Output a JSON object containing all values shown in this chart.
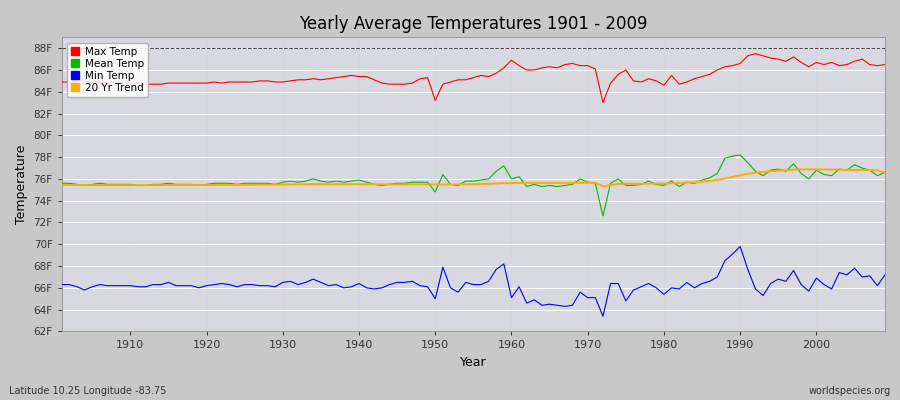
{
  "title": "Yearly Average Temperatures 1901 - 2009",
  "xlabel": "Year",
  "ylabel": "Temperature",
  "lat_lon_label": "Latitude 10.25 Longitude -83.75",
  "source_label": "worldspecies.org",
  "ylim": [
    62,
    89
  ],
  "yticks": [
    62,
    64,
    66,
    68,
    70,
    72,
    74,
    76,
    78,
    80,
    82,
    84,
    86,
    88
  ],
  "ytick_labels": [
    "62F",
    "64F",
    "66F",
    "68F",
    "70F",
    "72F",
    "74F",
    "76F",
    "78F",
    "80F",
    "82F",
    "84F",
    "86F",
    "88F"
  ],
  "xlim": [
    1901,
    2009
  ],
  "fig_bg": "#c8c8c8",
  "plot_bg": "#d8d8e0",
  "dashed_line_y": 88,
  "years": [
    1901,
    1902,
    1903,
    1904,
    1905,
    1906,
    1907,
    1908,
    1909,
    1910,
    1911,
    1912,
    1913,
    1914,
    1915,
    1916,
    1917,
    1918,
    1919,
    1920,
    1921,
    1922,
    1923,
    1924,
    1925,
    1926,
    1927,
    1928,
    1929,
    1930,
    1931,
    1932,
    1933,
    1934,
    1935,
    1936,
    1937,
    1938,
    1939,
    1940,
    1941,
    1942,
    1943,
    1944,
    1945,
    1946,
    1947,
    1948,
    1949,
    1950,
    1951,
    1952,
    1953,
    1954,
    1955,
    1956,
    1957,
    1958,
    1959,
    1960,
    1961,
    1962,
    1963,
    1964,
    1965,
    1966,
    1967,
    1968,
    1969,
    1970,
    1971,
    1972,
    1973,
    1974,
    1975,
    1976,
    1977,
    1978,
    1979,
    1980,
    1981,
    1982,
    1983,
    1984,
    1985,
    1986,
    1987,
    1988,
    1989,
    1990,
    1991,
    1992,
    1993,
    1994,
    1995,
    1996,
    1997,
    1998,
    1999,
    2000,
    2001,
    2002,
    2003,
    2004,
    2005,
    2006,
    2007,
    2008,
    2009
  ],
  "max_temp": [
    84.9,
    84.9,
    85.0,
    85.0,
    84.9,
    84.9,
    84.8,
    84.9,
    84.8,
    84.8,
    84.7,
    84.7,
    84.7,
    84.7,
    84.8,
    84.8,
    84.8,
    84.8,
    84.8,
    84.8,
    84.9,
    84.8,
    84.9,
    84.9,
    84.9,
    84.9,
    85.0,
    85.0,
    84.9,
    84.9,
    85.0,
    85.1,
    85.1,
    85.2,
    85.1,
    85.2,
    85.3,
    85.4,
    85.5,
    85.4,
    85.4,
    85.1,
    84.8,
    84.7,
    84.7,
    84.7,
    84.8,
    85.2,
    85.3,
    83.2,
    84.7,
    84.9,
    85.1,
    85.1,
    85.3,
    85.5,
    85.4,
    85.7,
    86.2,
    86.9,
    86.4,
    86.0,
    86.0,
    86.2,
    86.3,
    86.2,
    86.5,
    86.6,
    86.4,
    86.4,
    86.1,
    83.0,
    84.8,
    85.6,
    86.0,
    85.0,
    84.9,
    85.2,
    85.0,
    84.6,
    85.5,
    84.7,
    84.9,
    85.2,
    85.4,
    85.6,
    86.0,
    86.3,
    86.4,
    86.6,
    87.3,
    87.5,
    87.3,
    87.1,
    87.0,
    86.8,
    87.2,
    86.7,
    86.3,
    86.7,
    86.5,
    86.7,
    86.4,
    86.5,
    86.8,
    87.0,
    86.5,
    86.4,
    86.5
  ],
  "mean_temp": [
    75.6,
    75.6,
    75.5,
    75.4,
    75.5,
    75.6,
    75.5,
    75.5,
    75.5,
    75.5,
    75.4,
    75.4,
    75.5,
    75.5,
    75.6,
    75.5,
    75.5,
    75.5,
    75.4,
    75.5,
    75.6,
    75.6,
    75.6,
    75.5,
    75.6,
    75.6,
    75.6,
    75.6,
    75.5,
    75.7,
    75.8,
    75.7,
    75.8,
    76.0,
    75.8,
    75.7,
    75.8,
    75.7,
    75.8,
    75.9,
    75.7,
    75.5,
    75.4,
    75.5,
    75.6,
    75.6,
    75.7,
    75.7,
    75.7,
    74.8,
    76.4,
    75.5,
    75.4,
    75.8,
    75.8,
    75.9,
    76.0,
    76.7,
    77.2,
    76.0,
    76.2,
    75.3,
    75.5,
    75.3,
    75.4,
    75.3,
    75.4,
    75.5,
    76.0,
    75.7,
    75.6,
    72.6,
    75.6,
    76.0,
    75.4,
    75.4,
    75.5,
    75.8,
    75.5,
    75.4,
    75.8,
    75.3,
    75.7,
    75.6,
    75.9,
    76.1,
    76.5,
    77.9,
    78.1,
    78.2,
    77.5,
    76.7,
    76.3,
    76.8,
    76.9,
    76.7,
    77.4,
    76.5,
    76.0,
    76.8,
    76.4,
    76.3,
    76.9,
    76.8,
    77.3,
    77.0,
    76.8,
    76.3,
    76.6
  ],
  "min_temp": [
    66.3,
    66.3,
    66.1,
    65.8,
    66.1,
    66.3,
    66.2,
    66.2,
    66.2,
    66.2,
    66.1,
    66.1,
    66.3,
    66.3,
    66.5,
    66.2,
    66.2,
    66.2,
    66.0,
    66.2,
    66.3,
    66.4,
    66.3,
    66.1,
    66.3,
    66.3,
    66.2,
    66.2,
    66.1,
    66.5,
    66.6,
    66.3,
    66.5,
    66.8,
    66.5,
    66.2,
    66.3,
    66.0,
    66.1,
    66.4,
    66.0,
    65.9,
    66.0,
    66.3,
    66.5,
    66.5,
    66.6,
    66.2,
    66.1,
    65.0,
    67.9,
    66.0,
    65.6,
    66.5,
    66.3,
    66.3,
    66.6,
    67.7,
    68.2,
    65.1,
    66.1,
    64.6,
    64.9,
    64.4,
    64.5,
    64.4,
    64.3,
    64.4,
    65.6,
    65.1,
    65.1,
    63.4,
    66.4,
    66.4,
    64.8,
    65.8,
    66.1,
    66.4,
    66.0,
    65.4,
    66.0,
    65.9,
    66.5,
    66.0,
    66.4,
    66.6,
    67.0,
    68.5,
    69.1,
    69.8,
    67.7,
    65.9,
    65.3,
    66.4,
    66.8,
    66.6,
    67.6,
    66.3,
    65.7,
    66.9,
    66.3,
    65.9,
    67.4,
    67.2,
    67.8,
    67.0,
    67.1,
    66.2,
    67.2
  ],
  "trend_start_year": 1901,
  "trend_values_full": [
    75.45,
    75.44,
    75.44,
    75.43,
    75.43,
    75.43,
    75.43,
    75.43,
    75.43,
    75.43,
    75.43,
    75.43,
    75.43,
    75.43,
    75.44,
    75.44,
    75.44,
    75.44,
    75.44,
    75.44,
    75.44,
    75.45,
    75.45,
    75.45,
    75.46,
    75.46,
    75.47,
    75.47,
    75.48,
    75.49,
    75.5,
    75.5,
    75.51,
    75.52,
    75.52,
    75.52,
    75.52,
    75.52,
    75.52,
    75.52,
    75.52,
    75.51,
    75.5,
    75.5,
    75.5,
    75.5,
    75.5,
    75.5,
    75.5,
    75.49,
    75.49,
    75.49,
    75.5,
    75.51,
    75.52,
    75.53,
    75.55,
    75.58,
    75.61,
    75.62,
    75.64,
    75.64,
    75.64,
    75.64,
    75.64,
    75.64,
    75.64,
    75.64,
    75.65,
    75.65,
    75.65,
    75.33,
    75.43,
    75.55,
    75.56,
    75.55,
    75.55,
    75.57,
    75.57,
    75.56,
    75.6,
    75.62,
    75.66,
    75.7,
    75.75,
    75.82,
    75.91,
    76.04,
    76.18,
    76.33,
    76.47,
    76.57,
    76.64,
    76.71,
    76.77,
    76.81,
    76.85,
    76.88,
    76.88,
    76.88,
    76.87,
    76.86,
    76.84,
    76.83,
    76.82,
    76.82,
    76.81,
    76.79,
    76.6
  ]
}
